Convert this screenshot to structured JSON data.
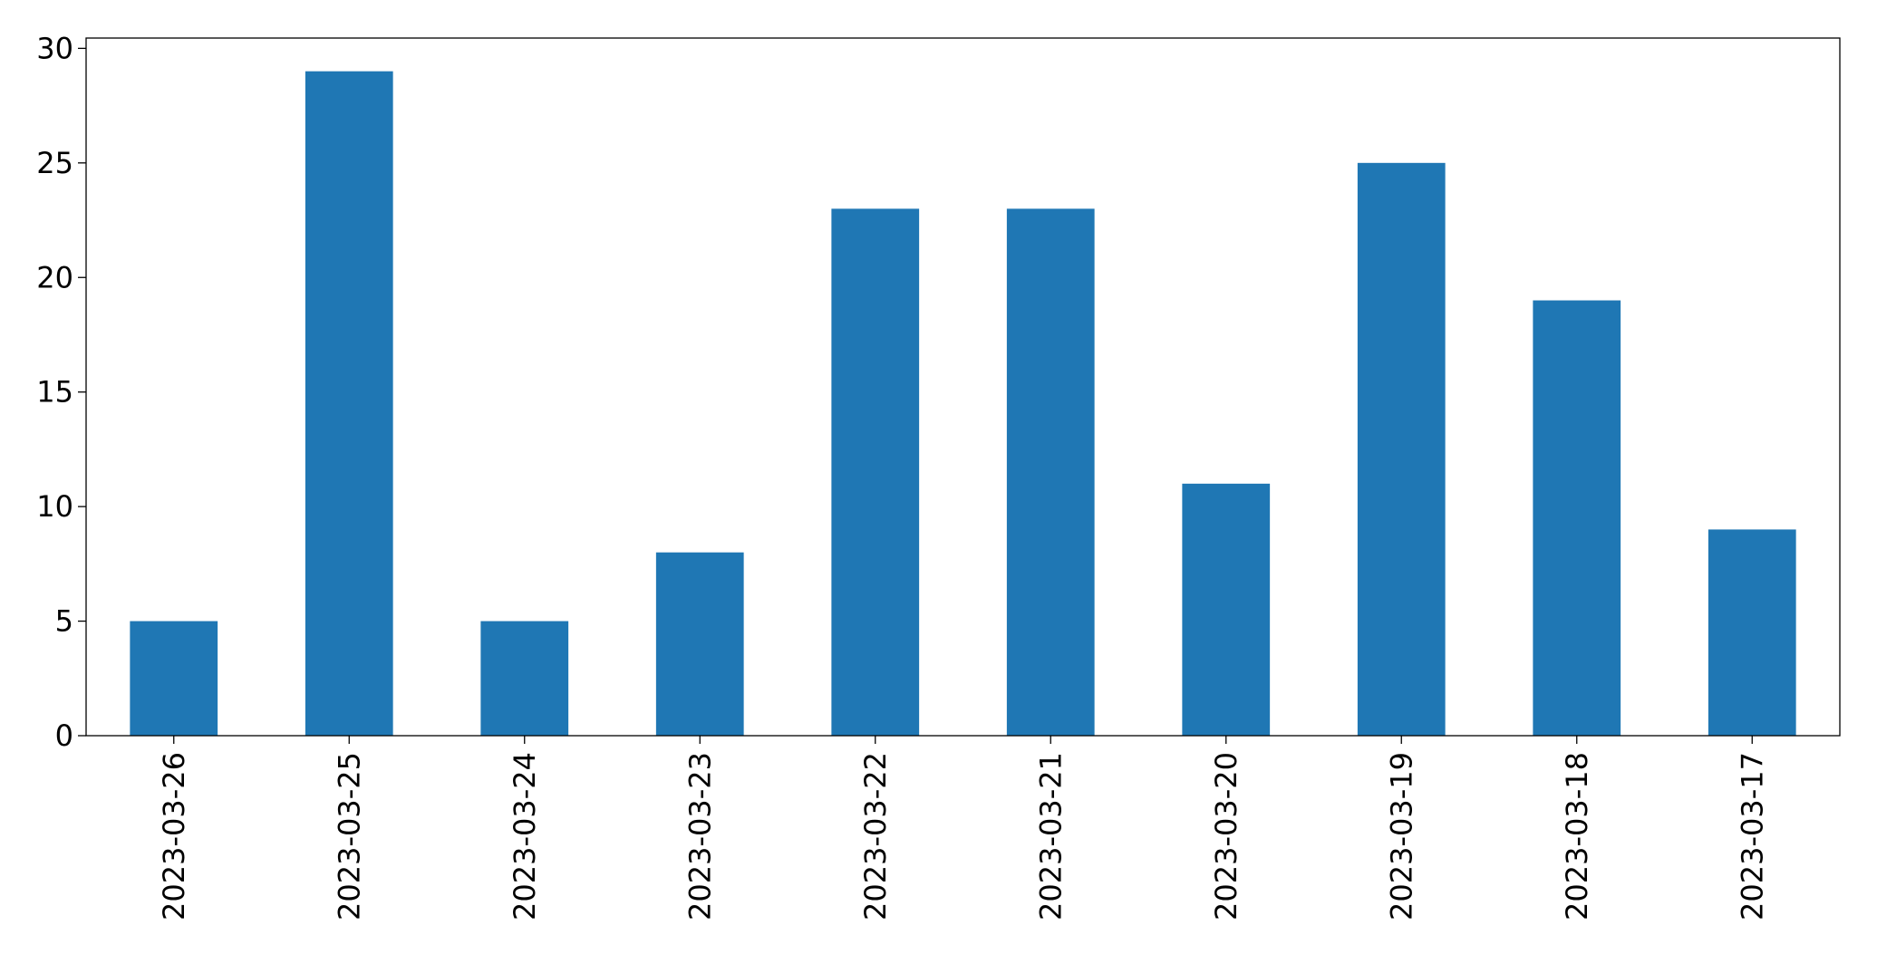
{
  "chart_data": {
    "type": "bar",
    "categories": [
      "2023-03-26",
      "2023-03-25",
      "2023-03-24",
      "2023-03-23",
      "2023-03-22",
      "2023-03-21",
      "2023-03-20",
      "2023-03-19",
      "2023-03-18",
      "2023-03-17"
    ],
    "values": [
      5,
      29,
      5,
      8,
      23,
      23,
      11,
      25,
      19,
      9
    ],
    "color": "#1f77b4",
    "ylim": [
      0,
      30.45
    ],
    "yticks": [
      0,
      5,
      10,
      15,
      20,
      25,
      30
    ],
    "grid": false
  }
}
